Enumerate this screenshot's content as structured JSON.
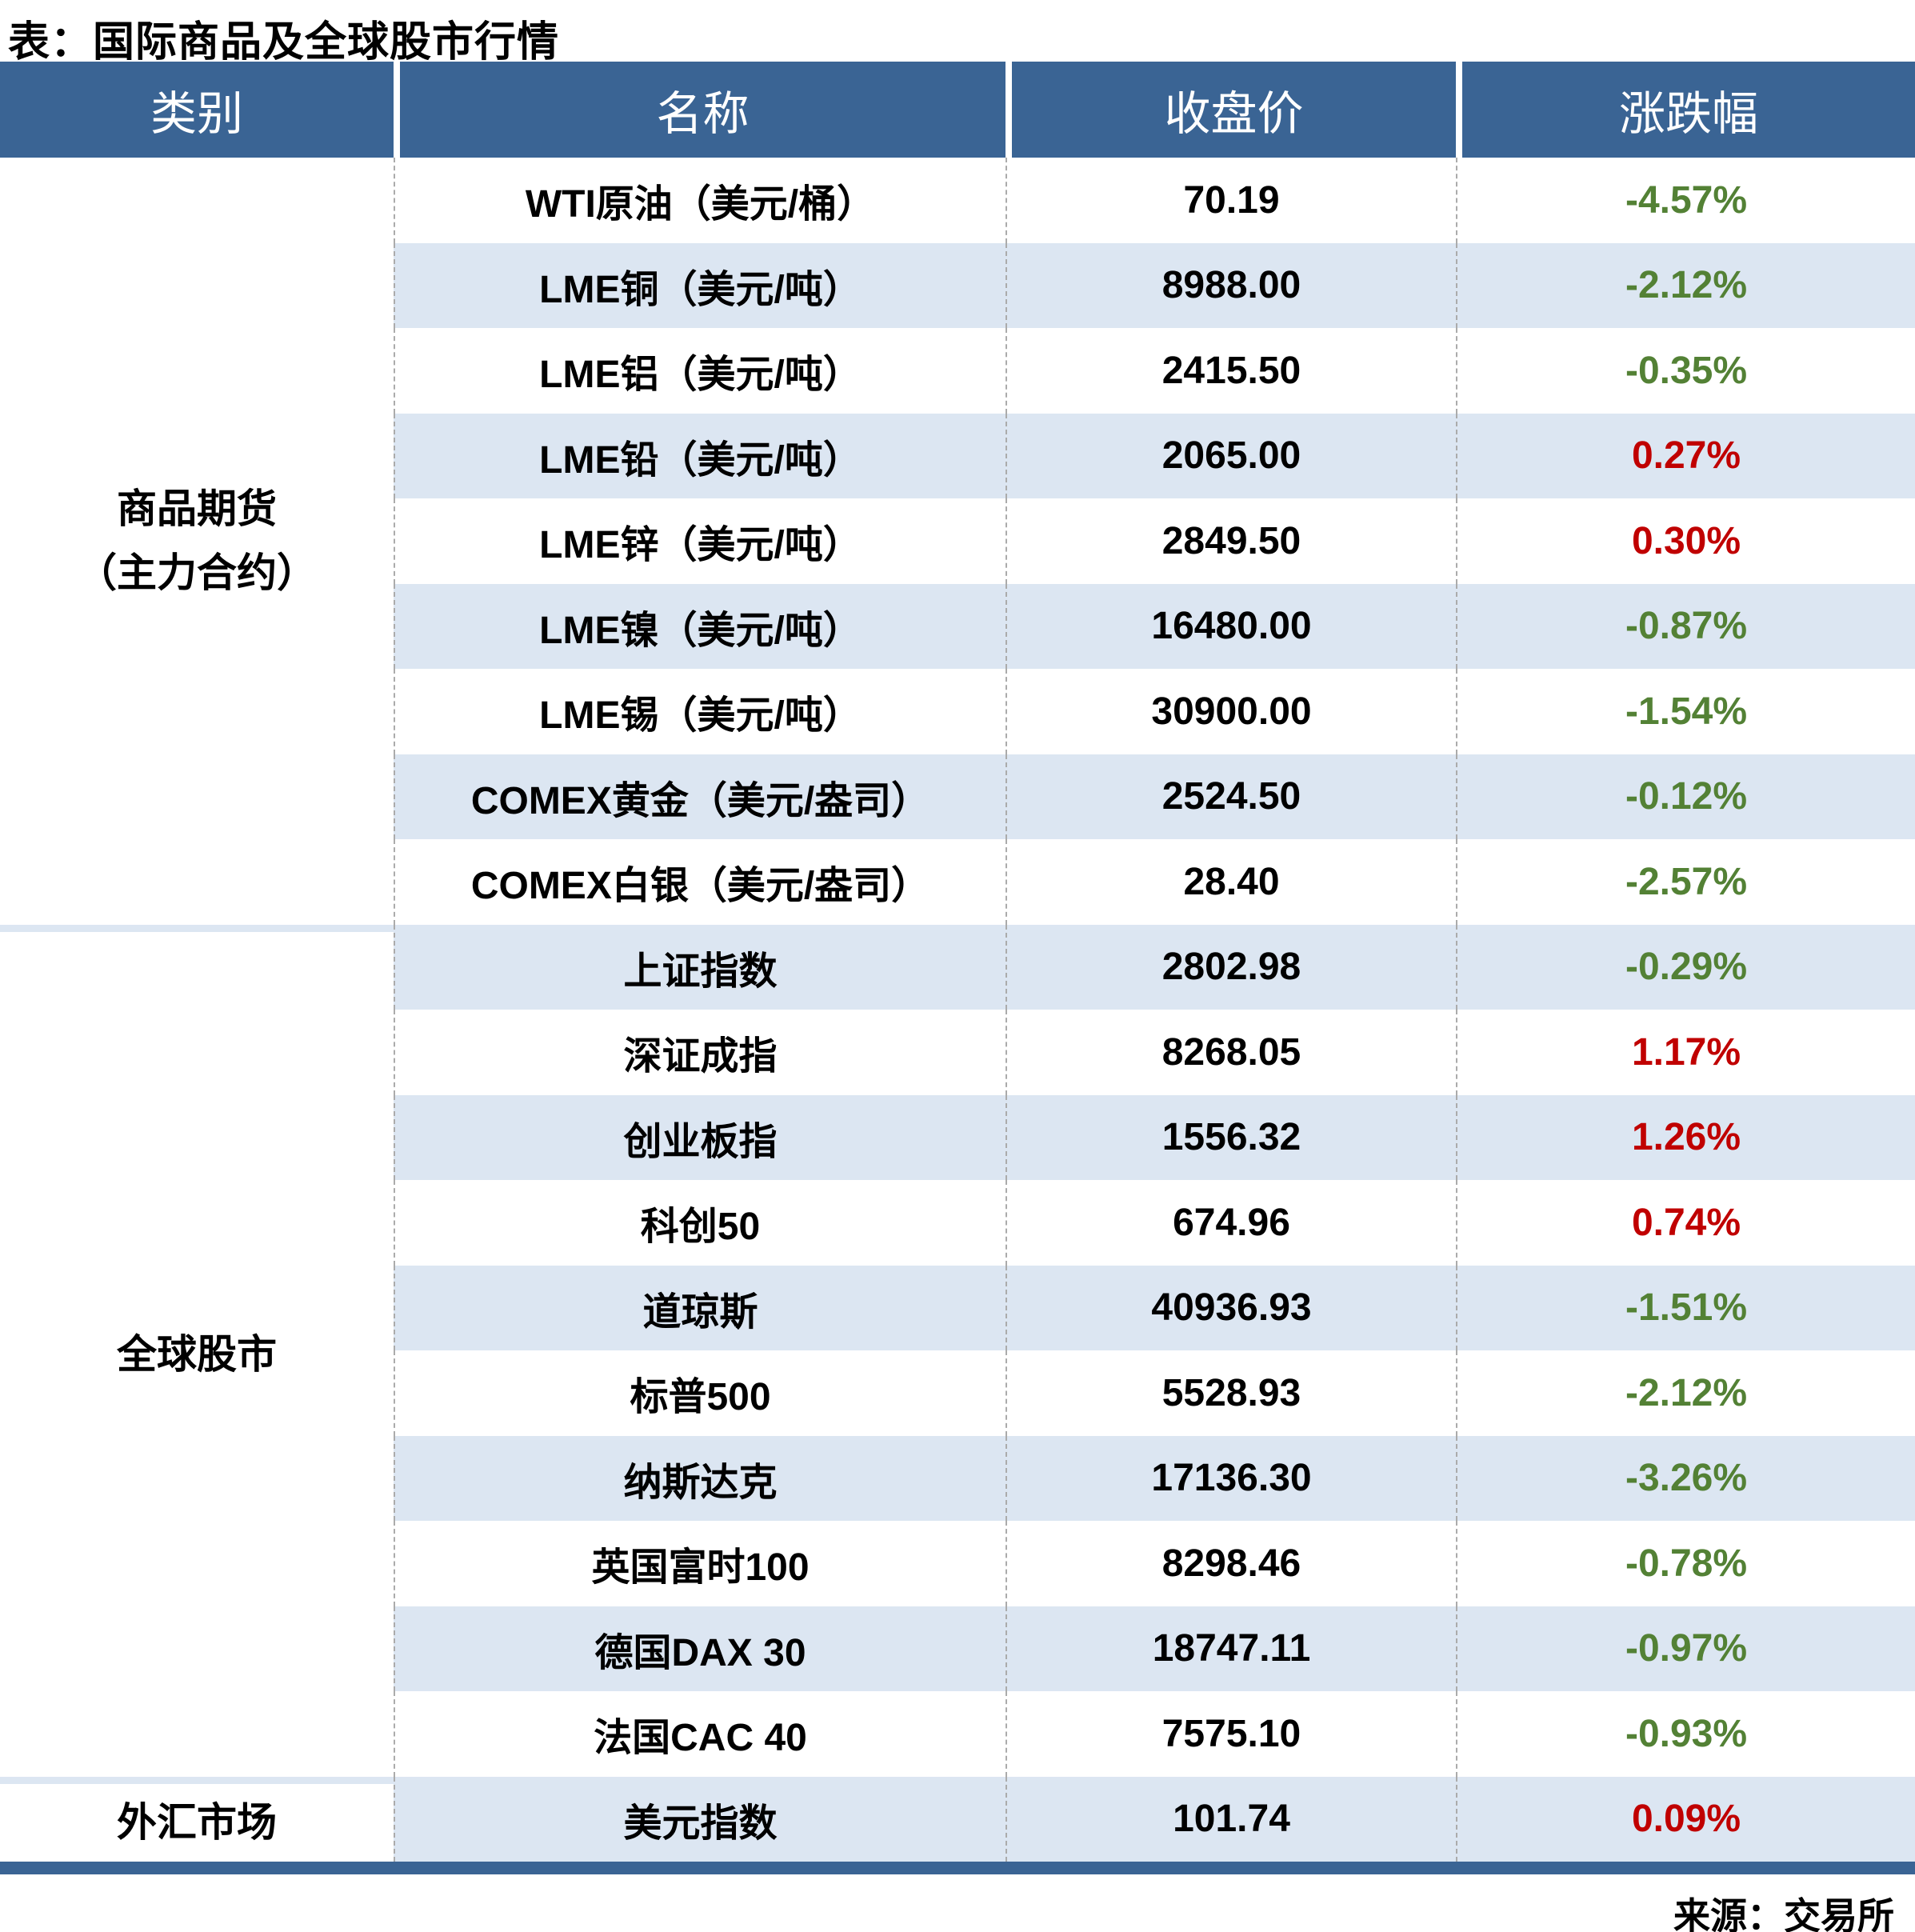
{
  "title": "表：国际商品及全球股市行情",
  "source_note": "来源：交易所",
  "colors": {
    "header_bg": "#3A6494",
    "header_text": "#FFFFFF",
    "zebra_row": "#DCE6F2",
    "up_red": "#C00000",
    "down_green": "#538135",
    "grid_dash": "#ABABAB",
    "bottom_bar": "#3A6494",
    "text": "#000000"
  },
  "table": {
    "headers": [
      "类别",
      "名称",
      "收盘价",
      "涨跌幅"
    ],
    "sections": [
      {
        "category_lines": [
          "商品期货",
          "（主力合约）"
        ],
        "rows": [
          {
            "name": "WTI原油（美元/桶）",
            "close": "70.19",
            "change": "-4.57%",
            "direction": "down"
          },
          {
            "name": "LME铜（美元/吨）",
            "close": "8988.00",
            "change": "-2.12%",
            "direction": "down"
          },
          {
            "name": "LME铝（美元/吨）",
            "close": "2415.50",
            "change": "-0.35%",
            "direction": "down"
          },
          {
            "name": "LME铅（美元/吨）",
            "close": "2065.00",
            "change": "0.27%",
            "direction": "up"
          },
          {
            "name": "LME锌（美元/吨）",
            "close": "2849.50",
            "change": "0.30%",
            "direction": "up"
          },
          {
            "name": "LME镍（美元/吨）",
            "close": "16480.00",
            "change": "-0.87%",
            "direction": "down"
          },
          {
            "name": "LME锡（美元/吨）",
            "close": "30900.00",
            "change": "-1.54%",
            "direction": "down"
          },
          {
            "name": "COMEX黄金（美元/盎司）",
            "close": "2524.50",
            "change": "-0.12%",
            "direction": "down"
          },
          {
            "name": "COMEX白银（美元/盎司）",
            "close": "28.40",
            "change": "-2.57%",
            "direction": "down"
          }
        ]
      },
      {
        "category_lines": [
          "全球股市"
        ],
        "rows": [
          {
            "name": "上证指数",
            "close": "2802.98",
            "change": "-0.29%",
            "direction": "down"
          },
          {
            "name": "深证成指",
            "close": "8268.05",
            "change": "1.17%",
            "direction": "up"
          },
          {
            "name": "创业板指",
            "close": "1556.32",
            "change": "1.26%",
            "direction": "up"
          },
          {
            "name": "科创50",
            "close": "674.96",
            "change": "0.74%",
            "direction": "up"
          },
          {
            "name": "道琼斯",
            "close": "40936.93",
            "change": "-1.51%",
            "direction": "down"
          },
          {
            "name": "标普500",
            "close": "5528.93",
            "change": "-2.12%",
            "direction": "down"
          },
          {
            "name": "纳斯达克",
            "close": "17136.30",
            "change": "-3.26%",
            "direction": "down"
          },
          {
            "name": "英国富时100",
            "close": "8298.46",
            "change": "-0.78%",
            "direction": "down"
          },
          {
            "name": "德国DAX 30",
            "close": "18747.11",
            "change": "-0.97%",
            "direction": "down"
          },
          {
            "name": "法国CAC 40",
            "close": "7575.10",
            "change": "-0.93%",
            "direction": "down"
          }
        ]
      },
      {
        "category_lines": [
          "外汇市场"
        ],
        "rows": [
          {
            "name": "美元指数",
            "close": "101.74",
            "change": "0.09%",
            "direction": "up"
          }
        ]
      }
    ]
  }
}
